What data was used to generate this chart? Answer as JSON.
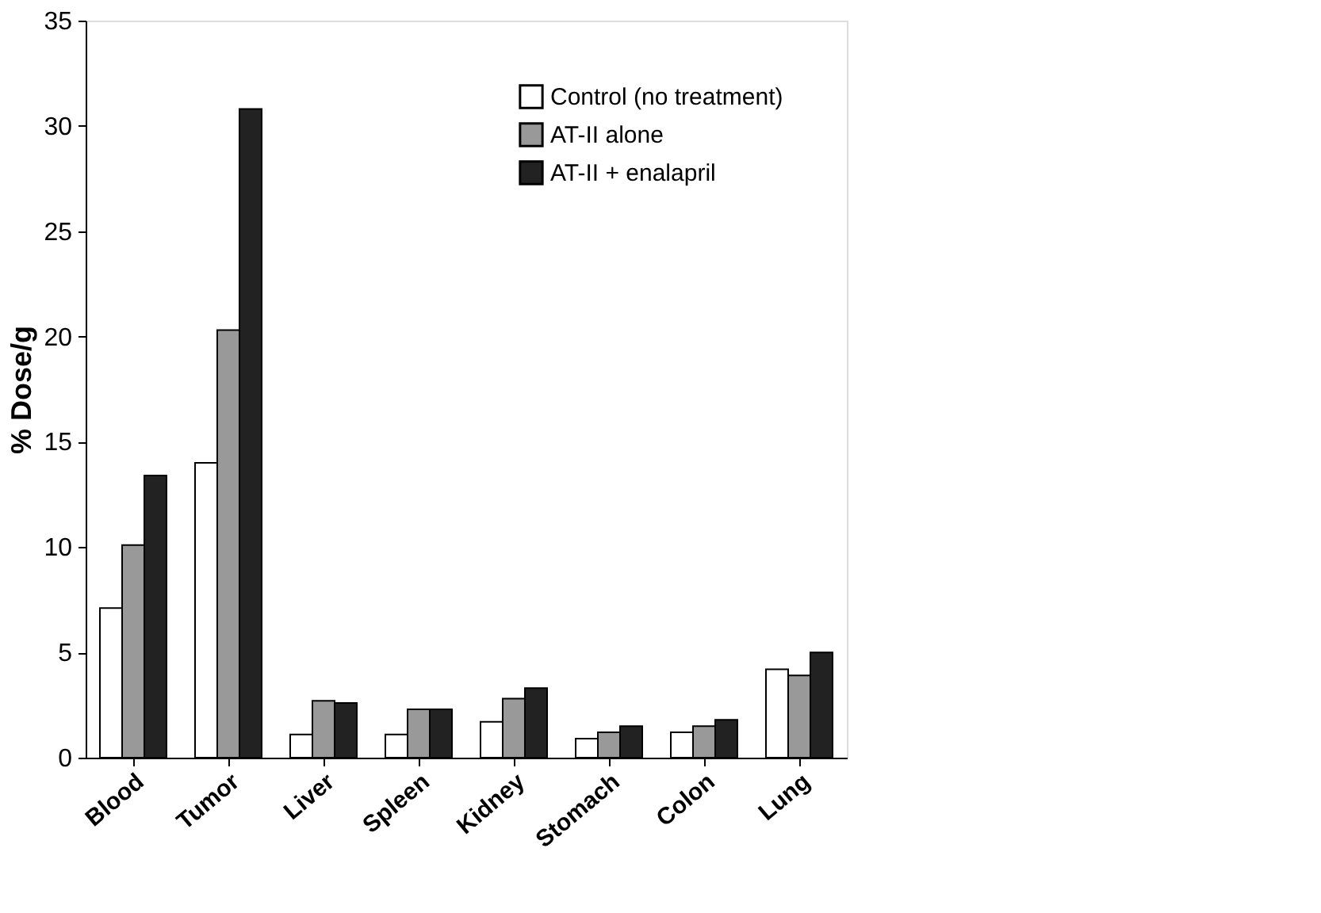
{
  "chart_data": {
    "type": "bar",
    "ylabel": "% Dose/g",
    "categories": [
      "Blood",
      "Tumor",
      "Liver",
      "Spleen",
      "Kidney",
      "Stomach",
      "Colon",
      "Lung"
    ],
    "series": [
      {
        "name": "Control (no treatment)",
        "color": "#ffffff",
        "values": [
          7.1,
          14.0,
          1.1,
          1.1,
          1.7,
          0.9,
          1.2,
          4.2
        ]
      },
      {
        "name": "AT-II alone",
        "color": "#999999",
        "values": [
          10.1,
          20.3,
          2.7,
          2.3,
          2.8,
          1.2,
          1.5,
          3.9
        ]
      },
      {
        "name": "AT-II + enalapril",
        "color": "#222222",
        "values": [
          13.4,
          30.8,
          2.6,
          2.3,
          3.3,
          1.5,
          1.8,
          5.0
        ]
      }
    ],
    "ylim": [
      0,
      35
    ],
    "yticks": [
      0,
      5,
      10,
      15,
      20,
      25,
      30,
      35
    ],
    "grid": false,
    "legend": "top right"
  }
}
